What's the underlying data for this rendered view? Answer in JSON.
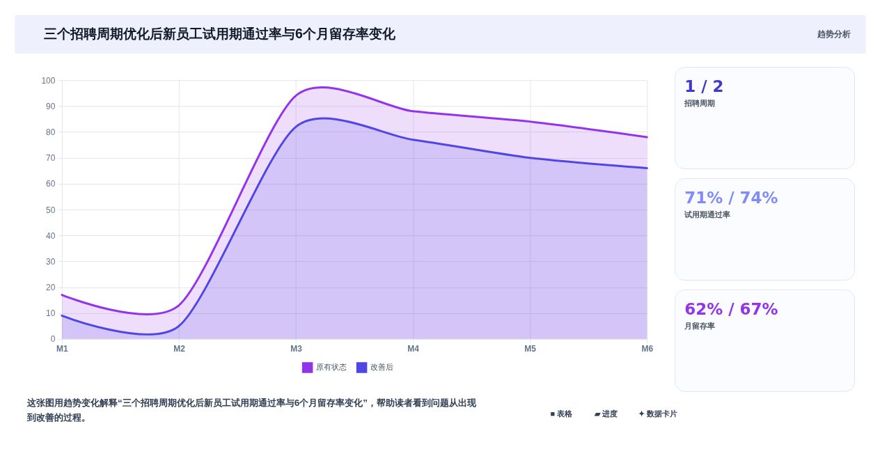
{
  "chart_data": [
    {
      "type": "area",
      "title": "三个招聘周期优化后新员工试用期通过率与6个月留存率变化",
      "categories": [
        "M1",
        "M2",
        "M3",
        "M4",
        "M5",
        "M6"
      ],
      "series": [
        {
          "name": "原有状态",
          "color": "#9333ea",
          "values": [
            17,
            13,
            94,
            88,
            84,
            78
          ]
        },
        {
          "name": "改善后",
          "color": "#4f46e5",
          "values": [
            9,
            5,
            82,
            77,
            70,
            66
          ]
        }
      ],
      "ylim": [
        0,
        100
      ],
      "yticks": [
        0,
        10,
        20,
        30,
        40,
        50,
        60,
        70,
        80,
        90,
        100
      ],
      "grid": true,
      "legend": "bottom",
      "annotations": [
        "趋势分析",
        "这张图用趋势变化解释“三个招聘周期优化后新员工试用期通过率与6个月留存率变化”，帮助读者看到问题从出现到改善的过程。",
        "■ 表格",
        "▰ 进度",
        "✦ 数据卡片"
      ]
    },
    {
      "type": "other",
      "title": "1 / 2",
      "subtitle": "招聘周期"
    },
    {
      "type": "other",
      "title": "71% / 74%",
      "subtitle": "试用期通过率"
    },
    {
      "type": "other",
      "title": "62% / 67%",
      "subtitle": "月留存率"
    }
  ]
}
